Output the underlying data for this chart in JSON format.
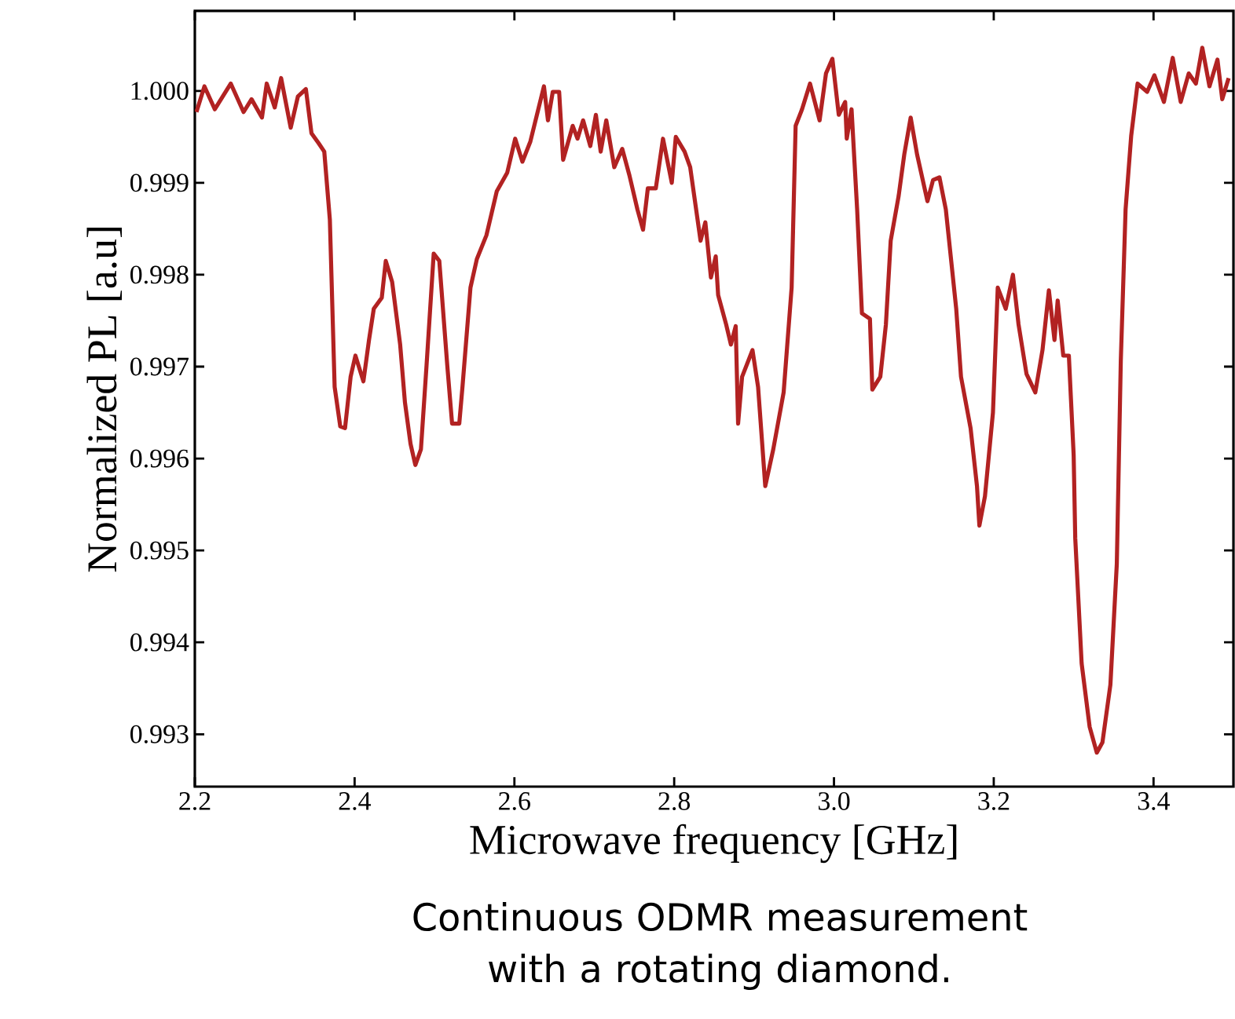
{
  "chart_data": {
    "type": "line",
    "xlabel": "Microwave frequency [GHz]",
    "ylabel": "Normalized PL [a.u]",
    "annotations": [
      "Continuous ODMR measurement with a rotating diamond."
    ],
    "xlim": [
      2.2,
      3.5
    ],
    "ylim": [
      0.99243,
      1.00087
    ],
    "xticks": [
      {
        "value": 2.2,
        "label": "2.2"
      },
      {
        "value": 2.4,
        "label": "2.4"
      },
      {
        "value": 2.6,
        "label": "2.6"
      },
      {
        "value": 2.8,
        "label": "2.8"
      },
      {
        "value": 3.0,
        "label": "3.0"
      },
      {
        "value": 3.2,
        "label": "3.2"
      },
      {
        "value": 3.4,
        "label": "3.4"
      }
    ],
    "yticks": [
      {
        "value": 0.993,
        "label": "0.993"
      },
      {
        "value": 0.994,
        "label": "0.994"
      },
      {
        "value": 0.995,
        "label": "0.995"
      },
      {
        "value": 0.996,
        "label": "0.996"
      },
      {
        "value": 0.997,
        "label": "0.997"
      },
      {
        "value": 0.998,
        "label": "0.998"
      },
      {
        "value": 0.999,
        "label": "0.999"
      },
      {
        "value": 1.0,
        "label": "1.000"
      }
    ],
    "grid": false,
    "marker": "none",
    "line_style": "solid",
    "series": [
      {
        "color": "#b22222",
        "x": [
          2.202,
          2.212,
          2.225,
          2.245,
          2.261,
          2.271,
          2.284,
          2.29,
          2.3,
          2.308,
          2.32,
          2.329,
          2.339,
          2.346,
          2.355,
          2.362,
          2.369,
          2.375,
          2.382,
          2.388,
          2.395,
          2.401,
          2.411,
          2.418,
          2.424,
          2.434,
          2.439,
          2.447,
          2.457,
          2.463,
          2.47,
          2.476,
          2.483,
          2.49,
          2.499,
          2.506,
          2.516,
          2.522,
          2.531,
          2.535,
          2.545,
          2.553,
          2.565,
          2.578,
          2.591,
          2.601,
          2.61,
          2.62,
          2.637,
          2.642,
          2.648,
          2.656,
          2.661,
          2.673,
          2.679,
          2.686,
          2.695,
          2.702,
          2.708,
          2.715,
          2.725,
          2.735,
          2.744,
          2.754,
          2.761,
          2.767,
          2.777,
          2.786,
          2.797,
          2.802,
          2.813,
          2.82,
          2.833,
          2.839,
          2.846,
          2.852,
          2.855,
          2.865,
          2.871,
          2.877,
          2.88,
          2.885,
          2.898,
          2.905,
          2.914,
          2.924,
          2.937,
          2.947,
          2.952,
          2.96,
          2.97,
          2.982,
          2.99,
          2.998,
          3.006,
          3.014,
          3.016,
          3.022,
          3.029,
          3.035,
          3.045,
          3.048,
          3.058,
          3.065,
          3.071,
          3.081,
          3.088,
          3.096,
          3.104,
          3.117,
          3.124,
          3.132,
          3.14,
          3.153,
          3.159,
          3.171,
          3.179,
          3.182,
          3.189,
          3.199,
          3.205,
          3.215,
          3.224,
          3.231,
          3.241,
          3.252,
          3.261,
          3.269,
          3.276,
          3.28,
          3.287,
          3.294,
          3.3,
          3.302,
          3.31,
          3.32,
          3.329,
          3.336,
          3.346,
          3.354,
          3.359,
          3.365,
          3.372,
          3.38,
          3.392,
          3.401,
          3.413,
          3.424,
          3.434,
          3.444,
          3.453,
          3.461,
          3.47,
          3.48,
          3.486,
          3.494
        ],
        "values": [
          0.99977,
          1.00005,
          0.9998,
          1.00008,
          0.99977,
          0.99991,
          0.99971,
          1.00008,
          0.99982,
          1.00014,
          0.9996,
          0.99994,
          1.00002,
          0.99954,
          0.99943,
          0.99934,
          0.9986,
          0.99678,
          0.99635,
          0.99633,
          0.99689,
          0.99712,
          0.99684,
          0.99729,
          0.99763,
          0.99775,
          0.99815,
          0.99792,
          0.99724,
          0.99661,
          0.99616,
          0.99593,
          0.9961,
          0.99701,
          0.99823,
          0.99815,
          0.99701,
          0.99638,
          0.99638,
          0.99678,
          0.99786,
          0.99817,
          0.99843,
          0.99891,
          0.99911,
          0.99948,
          0.99923,
          0.99945,
          1.00005,
          0.99968,
          0.99999,
          0.99999,
          0.99925,
          0.99962,
          0.99948,
          0.99968,
          0.9994,
          0.99974,
          0.99934,
          0.99968,
          0.99917,
          0.99937,
          0.99908,
          0.99871,
          0.99849,
          0.99894,
          0.99894,
          0.99948,
          0.999,
          0.9995,
          0.99934,
          0.99917,
          0.99837,
          0.99857,
          0.99797,
          0.9982,
          0.99778,
          0.99746,
          0.99724,
          0.99744,
          0.99638,
          0.99689,
          0.99718,
          0.99678,
          0.9957,
          0.9961,
          0.99672,
          0.99786,
          0.99962,
          0.9998,
          1.00008,
          0.99968,
          1.00019,
          1.00035,
          0.99974,
          0.99988,
          0.99948,
          0.9998,
          0.99871,
          0.99758,
          0.99752,
          0.99675,
          0.99689,
          0.99746,
          0.99837,
          0.99886,
          0.99931,
          0.99971,
          0.99931,
          0.9988,
          0.99903,
          0.99906,
          0.99871,
          0.99763,
          0.99689,
          0.99633,
          0.9957,
          0.99527,
          0.99559,
          0.9965,
          0.99786,
          0.99763,
          0.998,
          0.99746,
          0.99692,
          0.99672,
          0.99718,
          0.99783,
          0.99729,
          0.99772,
          0.99712,
          0.99712,
          0.99604,
          0.99513,
          0.99377,
          0.99308,
          0.9928,
          0.99291,
          0.99354,
          0.99485,
          0.99706,
          0.99871,
          0.99951,
          1.00008,
          0.99999,
          1.00017,
          0.99988,
          1.00036,
          0.99988,
          1.00019,
          1.00008,
          1.00047,
          1.00005,
          1.00034,
          0.99991,
          1.00014
        ]
      }
    ]
  }
}
